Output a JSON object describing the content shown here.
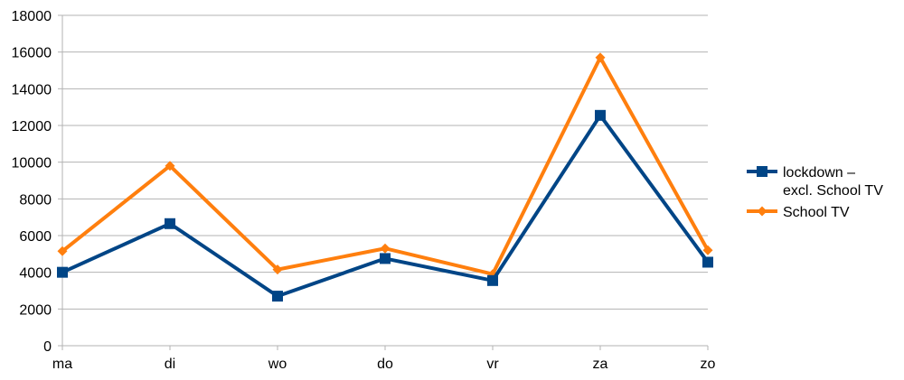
{
  "chart_data": {
    "type": "line",
    "title": "",
    "xlabel": "",
    "ylabel": "",
    "categories": [
      "ma",
      "di",
      "wo",
      "do",
      "vr",
      "za",
      "zo"
    ],
    "ylim": [
      0,
      18000
    ],
    "yticks": [
      0,
      2000,
      4000,
      6000,
      8000,
      10000,
      12000,
      14000,
      16000,
      18000
    ],
    "grid": true,
    "legend_position": "right",
    "series": [
      {
        "name": "lockdown –\nexcl. School TV",
        "name_lines": [
          "lockdown –",
          "excl. School TV"
        ],
        "color": "#004586",
        "marker": "square",
        "values": [
          4000,
          6650,
          2700,
          4750,
          3550,
          12550,
          4550
        ]
      },
      {
        "name": "School TV",
        "name_lines": [
          "School TV"
        ],
        "color": "#ff7f0e",
        "marker": "diamond",
        "values": [
          5150,
          9800,
          4150,
          5300,
          3900,
          15700,
          5200
        ]
      }
    ]
  }
}
